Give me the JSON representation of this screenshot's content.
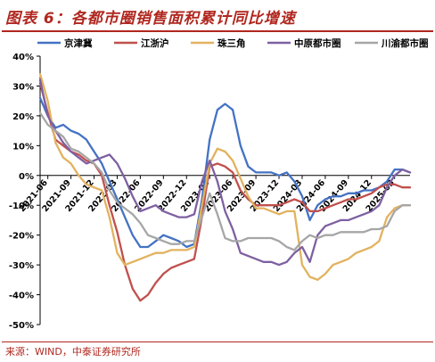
{
  "title": "图表 6：各都市圈销售面积累计同比增速",
  "source": "来源：WIND，中泰证券研究所",
  "colors": {
    "title": "#b0271f",
    "京津冀": "#4472c4",
    "江浙沪": "#c0504d",
    "珠三角": "#e2b25e",
    "中原都市圈": "#7e60a1",
    "川渝都市圈": "#a6a6a6"
  },
  "chart_data": {
    "type": "line",
    "title": "",
    "xlabel": "",
    "ylabel": "",
    "ylim": [
      -0.5,
      0.4
    ],
    "y_ticks": [
      "-50%",
      "-40%",
      "-30%",
      "-20%",
      "-10%",
      "0%",
      "10%",
      "20%",
      "30%",
      "40%"
    ],
    "x_ticks": [
      "2021-06",
      "2021-09",
      "2021-12",
      "2022-03",
      "2022-06",
      "2022-09",
      "2022-12",
      "2023-03",
      "2023-06",
      "2023-09",
      "2023-12",
      "2024-03",
      "2024-06",
      "2024-09",
      "2024-12",
      "2025-03"
    ],
    "legend": "top",
    "grid": false,
    "x": [
      "2021-05",
      "2021-06",
      "2021-07",
      "2021-08",
      "2021-09",
      "2021-10",
      "2021-11",
      "2021-12",
      "2022-01",
      "2022-02",
      "2022-03",
      "2022-04",
      "2022-05",
      "2022-06",
      "2022-07",
      "2022-08",
      "2022-09",
      "2022-10",
      "2022-11",
      "2022-12",
      "2023-01",
      "2023-02",
      "2023-03",
      "2023-04",
      "2023-05",
      "2023-06",
      "2023-07",
      "2023-08",
      "2023-09",
      "2023-10",
      "2023-11",
      "2023-12",
      "2024-01",
      "2024-02",
      "2024-03",
      "2024-04",
      "2024-05",
      "2024-06",
      "2024-07",
      "2024-08",
      "2024-09",
      "2024-10",
      "2024-11",
      "2024-12",
      "2025-01",
      "2025-02",
      "2025-03",
      "2025-04",
      "2025-05"
    ],
    "series": [
      {
        "name": "京津冀",
        "values": [
          0.26,
          0.2,
          0.16,
          0.17,
          0.15,
          0.14,
          0.12,
          0.08,
          0.04,
          -0.02,
          -0.08,
          -0.14,
          -0.2,
          -0.24,
          -0.24,
          -0.22,
          -0.2,
          -0.21,
          -0.22,
          -0.24,
          -0.23,
          -0.08,
          0.12,
          0.22,
          0.24,
          0.22,
          0.1,
          0.03,
          0.01,
          0.01,
          0.01,
          0.0,
          0.01,
          -0.02,
          -0.07,
          -0.15,
          -0.1,
          -0.08,
          -0.07,
          -0.07,
          -0.06,
          -0.06,
          -0.05,
          -0.05,
          -0.04,
          -0.02,
          0.02,
          0.02,
          0.01
        ]
      },
      {
        "name": "江浙沪",
        "values": [
          0.31,
          0.21,
          0.12,
          0.1,
          0.08,
          0.07,
          0.05,
          0.04,
          0.0,
          -0.1,
          -0.19,
          -0.3,
          -0.38,
          -0.42,
          -0.4,
          -0.36,
          -0.33,
          -0.31,
          -0.3,
          -0.29,
          -0.28,
          -0.14,
          0.03,
          0.04,
          0.03,
          0.01,
          -0.05,
          -0.08,
          -0.1,
          -0.1,
          -0.1,
          -0.1,
          -0.09,
          -0.08,
          -0.09,
          -0.12,
          -0.12,
          -0.11,
          -0.1,
          -0.09,
          -0.08,
          -0.08,
          -0.07,
          -0.06,
          -0.04,
          -0.03,
          -0.03,
          -0.04,
          -0.04
        ]
      },
      {
        "name": "珠三角",
        "values": [
          0.34,
          0.25,
          0.11,
          0.06,
          0.04,
          0.0,
          -0.03,
          -0.04,
          -0.05,
          -0.14,
          -0.26,
          -0.3,
          -0.29,
          -0.28,
          -0.27,
          -0.26,
          -0.26,
          -0.25,
          -0.25,
          -0.25,
          -0.24,
          -0.1,
          0.04,
          0.09,
          0.08,
          0.05,
          -0.01,
          -0.07,
          -0.11,
          -0.11,
          -0.12,
          -0.13,
          -0.12,
          -0.12,
          -0.3,
          -0.34,
          -0.35,
          -0.33,
          -0.3,
          -0.29,
          -0.28,
          -0.26,
          -0.25,
          -0.24,
          -0.22,
          -0.14,
          -0.11,
          -0.1,
          -0.1
        ]
      },
      {
        "name": "中原都市圈",
        "values": [
          0.32,
          0.2,
          0.15,
          0.11,
          0.08,
          0.06,
          0.04,
          0.05,
          0.06,
          0.07,
          0.04,
          -0.01,
          -0.07,
          -0.12,
          -0.11,
          -0.1,
          -0.12,
          -0.13,
          -0.14,
          -0.14,
          -0.13,
          -0.02,
          0.05,
          -0.02,
          -0.12,
          -0.18,
          -0.26,
          -0.27,
          -0.28,
          -0.29,
          -0.29,
          -0.3,
          -0.29,
          -0.26,
          -0.24,
          -0.29,
          -0.2,
          -0.17,
          -0.16,
          -0.15,
          -0.15,
          -0.14,
          -0.13,
          -0.12,
          -0.1,
          -0.04,
          0.0,
          0.02,
          0.01
        ]
      },
      {
        "name": "川渝都市圈",
        "values": [
          0.21,
          0.17,
          0.15,
          0.13,
          0.09,
          0.08,
          0.06,
          0.04,
          0.01,
          -0.05,
          -0.09,
          -0.11,
          -0.13,
          -0.16,
          -0.2,
          -0.21,
          -0.22,
          -0.23,
          -0.23,
          -0.22,
          -0.22,
          -0.14,
          -0.06,
          -0.13,
          -0.21,
          -0.22,
          -0.22,
          -0.21,
          -0.21,
          -0.21,
          -0.21,
          -0.22,
          -0.24,
          -0.25,
          -0.22,
          -0.2,
          -0.21,
          -0.2,
          -0.2,
          -0.19,
          -0.19,
          -0.19,
          -0.19,
          -0.18,
          -0.18,
          -0.17,
          -0.12,
          -0.1,
          -0.1
        ]
      }
    ]
  }
}
